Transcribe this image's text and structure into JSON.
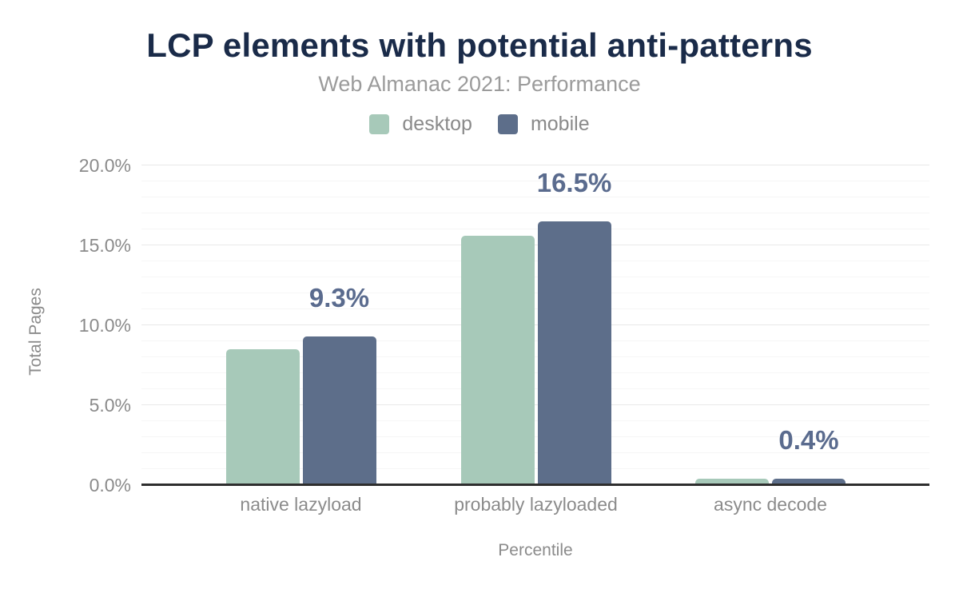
{
  "header": {
    "title": "LCP elements with potential anti-patterns",
    "subtitle": "Web Almanac 2021: Performance"
  },
  "legend": [
    {
      "label": "desktop",
      "color": "#a7c9b9"
    },
    {
      "label": "mobile",
      "color": "#5d6e8a"
    }
  ],
  "axes": {
    "y_title": "Total Pages",
    "x_title": "Percentile",
    "y_ticks": [
      "20.0%",
      "15.0%",
      "10.0%",
      "5.0%",
      "0.0%"
    ]
  },
  "chart_data": {
    "type": "bar",
    "title": "LCP elements with potential anti-patterns",
    "subtitle": "Web Almanac 2021: Performance",
    "categories": [
      "native lazyload",
      "probably lazyloaded",
      "async decode"
    ],
    "series": [
      {
        "name": "desktop",
        "color": "#a7c9b9",
        "values": [
          8.5,
          15.6,
          0.4
        ]
      },
      {
        "name": "mobile",
        "color": "#5d6e8a",
        "values": [
          9.3,
          16.5,
          0.4
        ]
      }
    ],
    "annotations": {
      "series": "mobile",
      "labels": [
        "9.3%",
        "16.5%",
        "0.4%"
      ],
      "color": "#5a6b8e"
    },
    "xlabel": "Percentile",
    "ylabel": "Total Pages",
    "ylim": [
      0,
      20
    ],
    "y_tick_step_major": 5,
    "y_tick_step_minor": 1,
    "y_tick_format": "percent",
    "grid": true,
    "legend_position": "top",
    "background": "#ffffff",
    "axis_line_color": "#2e2e2e",
    "gridline_major_color": "#e9e9e9",
    "gridline_minor_color": "#f6f6f6",
    "title_color": "#1a2b49",
    "text_color": "#8b8b8b"
  }
}
